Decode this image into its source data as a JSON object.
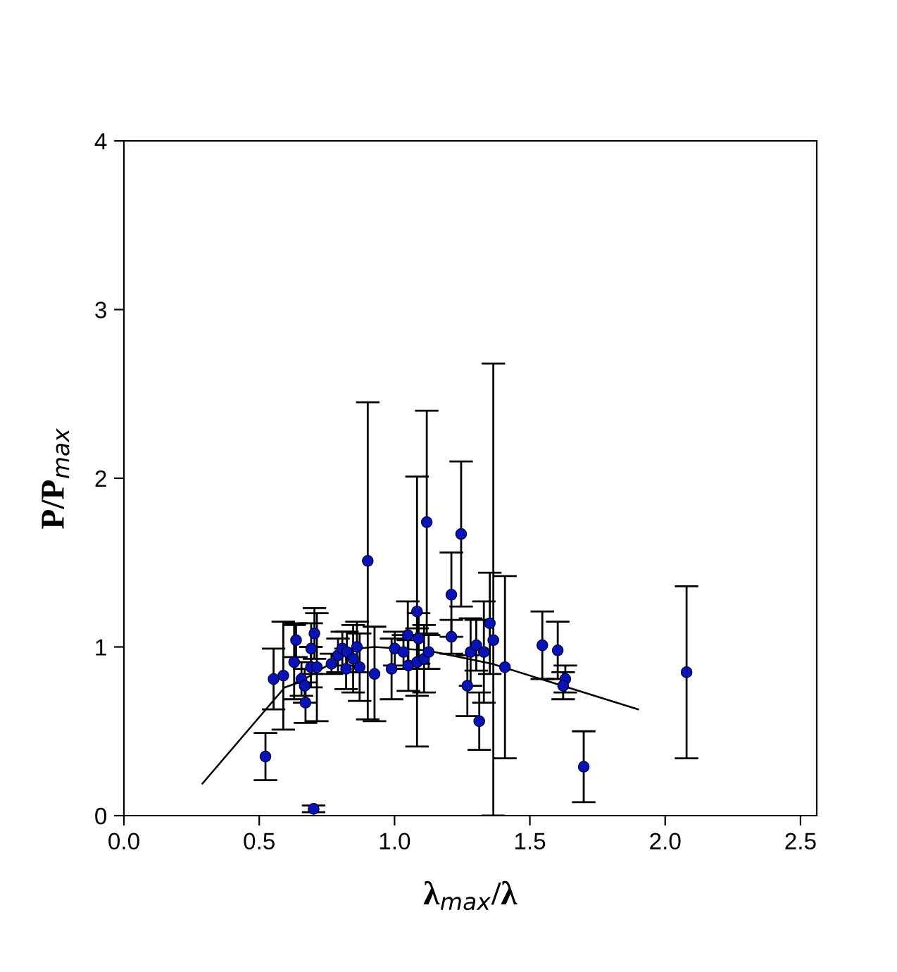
{
  "chart_data": {
    "type": "scatter",
    "xlabel": "λ$_{max}$/λ",
    "ylabel": "P/P$_{max}$",
    "xlim": [
      0,
      2.56
    ],
    "ylim": [
      0,
      4
    ],
    "xticks": [
      {
        "value": 0,
        "label": "0.0"
      },
      {
        "value": 0.5,
        "label": "0.5"
      },
      {
        "value": 1,
        "label": "1.0"
      },
      {
        "value": 1.5,
        "label": "1.5"
      },
      {
        "value": 2,
        "label": "2.0"
      },
      {
        "value": 2.5,
        "label": "2.5"
      }
    ],
    "yticks": [
      0,
      1,
      2,
      3,
      4
    ],
    "grid": false,
    "legend": false,
    "series": [
      {
        "color": "#0a14b4",
        "marker": "circle",
        "x": [
          0.523,
          0.553,
          0.589,
          0.629,
          0.636,
          0.656,
          0.668,
          0.671,
          0.692,
          0.704,
          0.691,
          0.713,
          0.701,
          0.767,
          0.791,
          0.807,
          0.824,
          0.821,
          0.847,
          0.861,
          0.871,
          0.901,
          0.926,
          0.989,
          1.001,
          1.033,
          1.049,
          1.051,
          1.083,
          1.119,
          1.089,
          1.083,
          1.109,
          1.126,
          1.21,
          1.246,
          1.21,
          1.269,
          1.281,
          1.302,
          1.313,
          1.33,
          1.352,
          1.365,
          1.408,
          1.546,
          1.603,
          1.631,
          1.623,
          1.699,
          2.079
        ],
        "values": [
          0.35,
          0.81,
          0.83,
          0.91,
          1.04,
          0.81,
          0.77,
          0.67,
          0.99,
          1.08,
          0.88,
          0.88,
          0.04,
          0.9,
          0.95,
          0.99,
          0.97,
          0.87,
          0.93,
          1.0,
          0.88,
          1.51,
          0.84,
          0.87,
          0.99,
          0.97,
          1.07,
          0.89,
          1.21,
          1.74,
          1.05,
          0.91,
          0.93,
          0.97,
          1.31,
          1.67,
          1.06,
          0.77,
          0.97,
          1.01,
          0.56,
          0.97,
          1.14,
          1.04,
          0.88,
          1.01,
          0.98,
          0.81,
          0.77,
          0.29,
          0.85
        ],
        "errors": [
          0.14,
          0.18,
          0.32,
          0.22,
          0.1,
          0.1,
          0.1,
          0.12,
          0.15,
          0.15,
          0.12,
          0.32,
          0.02,
          0.06,
          0.1,
          0.1,
          0.12,
          0.12,
          0.2,
          0.15,
          0.2,
          0.94,
          0.28,
          0.18,
          0.1,
          0.1,
          0.2,
          0.15,
          0.8,
          0.66,
          0.15,
          0.2,
          0.2,
          0.1,
          0.25,
          0.43,
          0.1,
          0.18,
          0.2,
          0.15,
          0.17,
          0.3,
          0.3,
          [
            0,
            2.68
          ],
          0.54,
          0.2,
          0.17,
          0.08,
          0.08,
          0.21,
          0.51
        ]
      },
      {
        "type": "line",
        "color": "#000000",
        "marker": "none",
        "line_style": "solid",
        "x": [
          0.29,
          0.594,
          0.647,
          0.856,
          0.926,
          1.117,
          1.361,
          1.9
        ],
        "values": [
          0.19,
          0.76,
          0.79,
          0.99,
          1.0,
          0.98,
          0.9,
          0.63
        ]
      }
    ]
  }
}
